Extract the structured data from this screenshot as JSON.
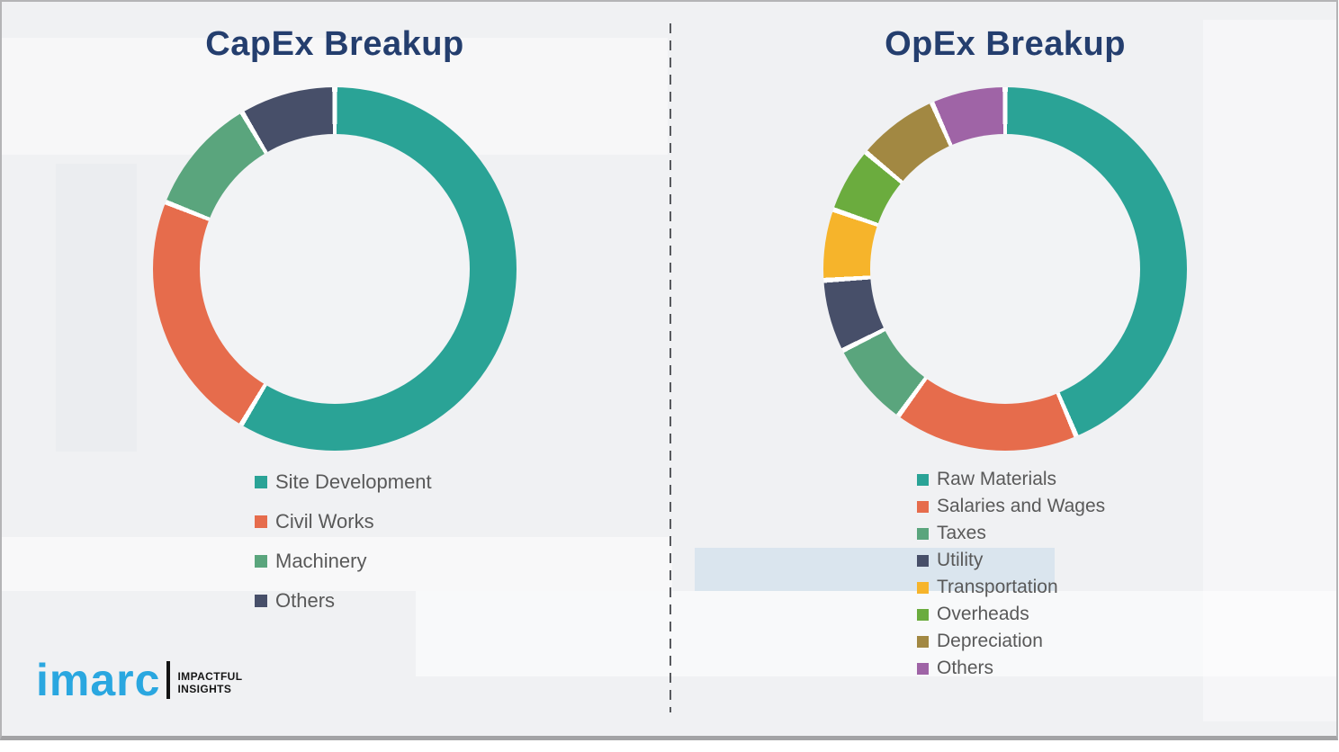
{
  "theme": {
    "background": "#f0f1f3",
    "title_color": "#243e6e",
    "legend_text_color": "#595959",
    "divider_color": "#585a5e",
    "logo_blue": "#2aa7e0"
  },
  "branding": {
    "logo_text": "imarc",
    "tagline_line1": "IMPACTFUL",
    "tagline_line2": "INSIGHTS"
  },
  "chart_data": [
    {
      "type": "pie",
      "variant": "donut",
      "title": "CapEx Breakup",
      "categories": [
        "Site Development",
        "Civil Works",
        "Machinery",
        "Others"
      ],
      "values": [
        58.6,
        22.4,
        10.5,
        8.5
      ],
      "colors": [
        "#2aa396",
        "#e66c4c",
        "#5aa57d",
        "#474f69"
      ],
      "start_angle_deg": 0,
      "direction": "clockwise",
      "legend_position": "bottom-left",
      "data_labels": "none"
    },
    {
      "type": "pie",
      "variant": "donut",
      "title": "OpEx Breakup",
      "categories": [
        "Raw Materials",
        "Salaries and Wages",
        "Taxes",
        "Utility",
        "Transportation",
        "Overheads",
        "Depreciation",
        "Others"
      ],
      "values": [
        43.6,
        16.4,
        7.6,
        6.4,
        6.3,
        5.8,
        7.3,
        6.6
      ],
      "colors": [
        "#2aa396",
        "#e66c4c",
        "#5aa57d",
        "#474f69",
        "#f6b42b",
        "#6bac3e",
        "#a28842",
        "#9f64a6"
      ],
      "start_angle_deg": 0,
      "direction": "clockwise",
      "legend_position": "bottom-left",
      "data_labels": "none"
    }
  ]
}
